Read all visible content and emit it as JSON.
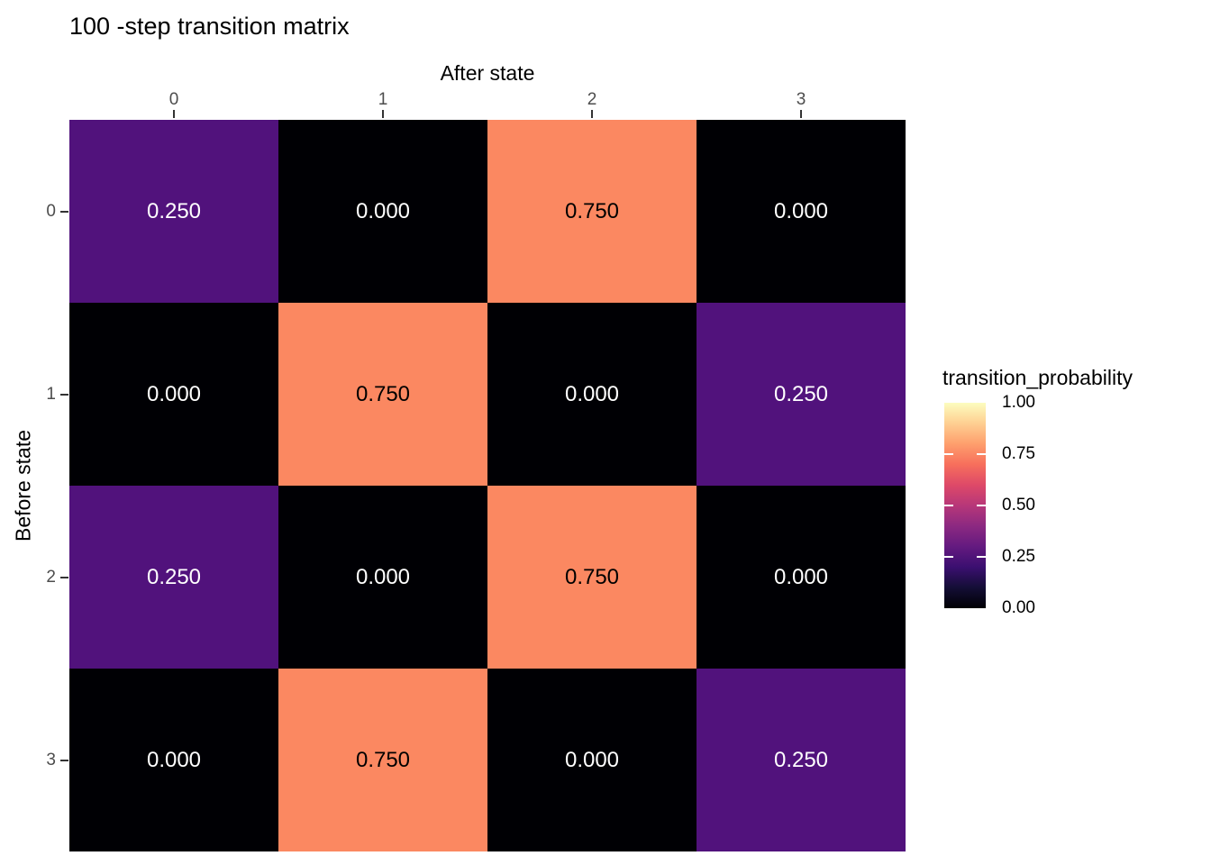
{
  "title": "100 -step transition matrix",
  "axes": {
    "x": {
      "title": "After state",
      "ticks": [
        "0",
        "1",
        "2",
        "3"
      ]
    },
    "y": {
      "title": "Before state",
      "ticks": [
        "0",
        "1",
        "2",
        "3"
      ]
    }
  },
  "legend": {
    "title": "transition_probability",
    "tick_labels": [
      "1.00",
      "0.75",
      "0.50",
      "0.25",
      "0.00"
    ],
    "tick_positions": [
      1.0,
      0.75,
      0.5,
      0.25,
      0.0
    ]
  },
  "chart_data": {
    "type": "heatmap",
    "title": "100 -step transition matrix",
    "xlabel": "After state",
    "ylabel": "Before state",
    "x_categories": [
      "0",
      "1",
      "2",
      "3"
    ],
    "y_categories": [
      "0",
      "1",
      "2",
      "3"
    ],
    "values": [
      [
        0.25,
        0.0,
        0.75,
        0.0
      ],
      [
        0.0,
        0.75,
        0.0,
        0.25
      ],
      [
        0.25,
        0.0,
        0.75,
        0.0
      ],
      [
        0.0,
        0.75,
        0.0,
        0.25
      ]
    ],
    "cell_labels": [
      [
        "0.250",
        "0.000",
        "0.750",
        "0.000"
      ],
      [
        "0.000",
        "0.750",
        "0.000",
        "0.250"
      ],
      [
        "0.250",
        "0.000",
        "0.750",
        "0.000"
      ],
      [
        "0.000",
        "0.750",
        "0.000",
        "0.250"
      ]
    ],
    "value_range": [
      0.0,
      1.0
    ],
    "colormap": "magma",
    "value_colors": {
      "0": "#000004",
      "0.25": "#51127C",
      "0.75": "#FB8861"
    },
    "gradient_stops": [
      "#000004",
      "#140E36",
      "#3B0F70",
      "#641A80",
      "#8C2981",
      "#B73779",
      "#DE4968",
      "#F76F5C",
      "#FE9F6D",
      "#FECF92",
      "#FCFDBF"
    ],
    "legend_title": "transition_probability",
    "legend_position": "right",
    "grid": false
  },
  "colors": {
    "background": "#FFFFFF",
    "tick_label": "#4D4D4D",
    "tick_mark": "#333333",
    "cell_text_light": "#FFFFFF",
    "cell_text_dark": "#000000"
  }
}
